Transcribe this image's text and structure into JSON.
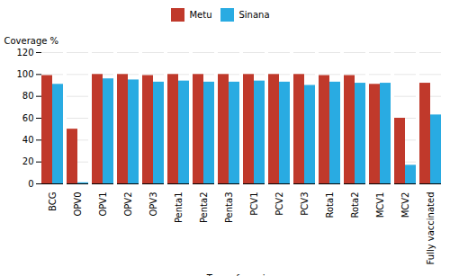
{
  "chart_data": {
    "type": "bar",
    "categories": [
      "BCG",
      "OPV0",
      "OPV1",
      "OPV2",
      "OPV3",
      "Penta1",
      "Penta2",
      "Penta3",
      "PCV1",
      "PCV2",
      "PCV3",
      "Rota1",
      "Rota2",
      "MCV1",
      "MCV2",
      "Fully vaccinated"
    ],
    "series": [
      {
        "name": "Metu",
        "color": "#C0392B",
        "values": [
          99,
          50,
          100,
          100,
          99,
          100,
          100,
          100,
          100,
          100,
          100,
          99,
          99,
          91,
          60,
          92
        ]
      },
      {
        "name": "Sinana",
        "color": "#29ABE2",
        "values": [
          91,
          1,
          96,
          95,
          93,
          94,
          93,
          93,
          94,
          93,
          90,
          93,
          92,
          92,
          17,
          63
        ]
      }
    ],
    "xlabel": "Type of vaccine",
    "ylabel": "Coverage %",
    "ylim": [
      0,
      120
    ],
    "yticks": [
      0,
      20,
      40,
      60,
      80,
      100,
      120
    ],
    "grid": true,
    "legend": "top"
  }
}
